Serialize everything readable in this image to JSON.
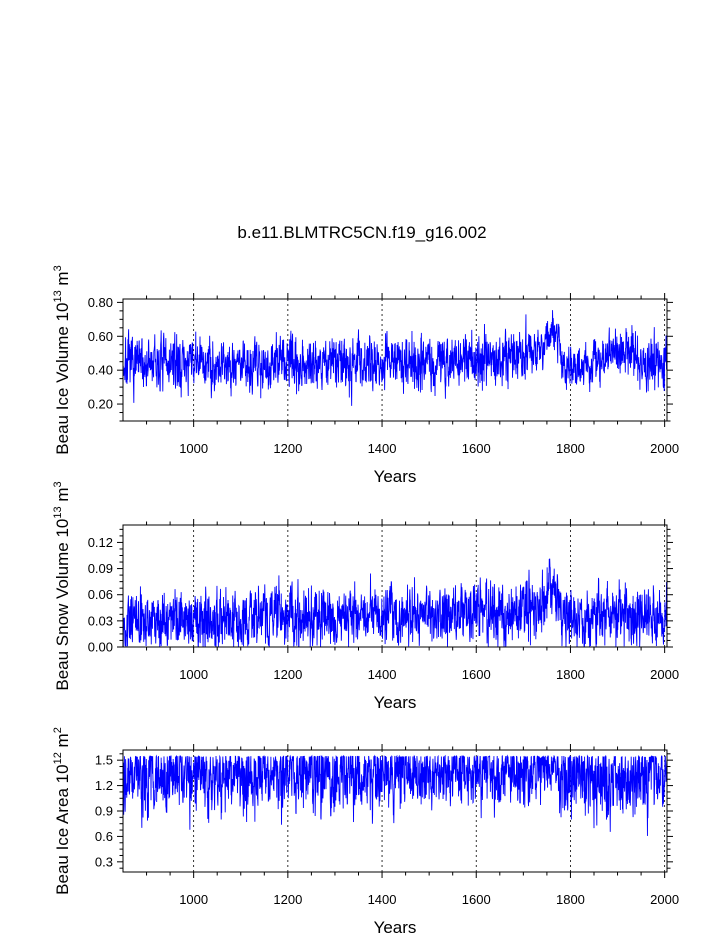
{
  "figure": {
    "title": "b.e11.BLMTRC5CN.f19_g16.002"
  },
  "colors": {
    "series": "#0000ff",
    "axes": "#000000",
    "background": "#ffffff"
  },
  "chart_data": [
    {
      "type": "line",
      "title": "",
      "xlabel": "Years",
      "ylabel": {
        "prefix": "Beau Ice Volume 10",
        "exp": "13",
        "unit": " m",
        "unit_exp": "3"
      },
      "xlim": [
        850,
        2005
      ],
      "ylim": [
        0.1,
        0.82
      ],
      "xticks": [
        1000,
        1200,
        1400,
        1600,
        1800,
        2000
      ],
      "xtick_labels": [
        "1000",
        "1200",
        "1400",
        "1600",
        "1800",
        "2000"
      ],
      "yticks": [
        0.2,
        0.4,
        0.6,
        0.8
      ],
      "ytick_labels": [
        "0.20",
        "0.40",
        "0.60",
        "0.80"
      ],
      "grid": "vertical dotted at major x ticks",
      "series": [
        {
          "name": "Beau Ice Volume",
          "color": "#0000ff"
        }
      ],
      "x_start": 850,
      "x_end": 2005,
      "keyframes": [
        [
          850,
          0.43,
          0.09
        ],
        [
          1000,
          0.44,
          0.09
        ],
        [
          1100,
          0.44,
          0.09
        ],
        [
          1300,
          0.45,
          0.09
        ],
        [
          1500,
          0.45,
          0.09
        ],
        [
          1600,
          0.47,
          0.09
        ],
        [
          1700,
          0.49,
          0.09
        ],
        [
          1740,
          0.52,
          0.09
        ],
        [
          1760,
          0.62,
          0.08
        ],
        [
          1775,
          0.6,
          0.07
        ],
        [
          1780,
          0.43,
          0.07
        ],
        [
          1850,
          0.44,
          0.08
        ],
        [
          1900,
          0.52,
          0.08
        ],
        [
          1930,
          0.52,
          0.09
        ],
        [
          1945,
          0.42,
          0.08
        ],
        [
          2005,
          0.43,
          0.09
        ]
      ],
      "clamp": [
        0.11,
        0.78
      ],
      "seed": 7
    },
    {
      "type": "line",
      "title": "",
      "xlabel": "Years",
      "ylabel": {
        "prefix": "Beau Snow Volume 10",
        "exp": "13",
        "unit": " m",
        "unit_exp": "3"
      },
      "xlim": [
        850,
        2005
      ],
      "ylim": [
        0.0,
        0.14
      ],
      "xticks": [
        1000,
        1200,
        1400,
        1600,
        1800,
        2000
      ],
      "xtick_labels": [
        "1000",
        "1200",
        "1400",
        "1600",
        "1800",
        "2000"
      ],
      "yticks": [
        0.0,
        0.03,
        0.06,
        0.09,
        0.12
      ],
      "ytick_labels": [
        "0.00",
        "0.03",
        "0.06",
        "0.09",
        "0.12"
      ],
      "grid": "vertical dotted at major x ticks",
      "series": [
        {
          "name": "Beau Snow Volume",
          "color": "#0000ff"
        }
      ],
      "x_start": 850,
      "x_end": 2005,
      "keyframes": [
        [
          850,
          0.03,
          0.018
        ],
        [
          1000,
          0.031,
          0.018
        ],
        [
          1200,
          0.036,
          0.02
        ],
        [
          1400,
          0.036,
          0.02
        ],
        [
          1600,
          0.038,
          0.021
        ],
        [
          1740,
          0.042,
          0.022
        ],
        [
          1760,
          0.07,
          0.025
        ],
        [
          1772,
          0.06,
          0.02
        ],
        [
          1780,
          0.032,
          0.018
        ],
        [
          1900,
          0.035,
          0.02
        ],
        [
          2005,
          0.03,
          0.018
        ]
      ],
      "clamp": [
        0.0,
        0.12
      ],
      "seed": 13
    },
    {
      "type": "line",
      "title": "",
      "xlabel": "Years",
      "ylabel": {
        "prefix": "Beau Ice Area 10",
        "exp": "12",
        "unit": " m",
        "unit_exp": "2"
      },
      "xlim": [
        850,
        2005
      ],
      "ylim": [
        0.18,
        1.62
      ],
      "xticks": [
        1000,
        1200,
        1400,
        1600,
        1800,
        2000
      ],
      "xtick_labels": [
        "1000",
        "1200",
        "1400",
        "1600",
        "1800",
        "2000"
      ],
      "yticks": [
        0.3,
        0.6,
        0.9,
        1.2,
        1.5
      ],
      "ytick_labels": [
        "0.3",
        "0.6",
        "0.9",
        "1.2",
        "1.5"
      ],
      "grid": "vertical dotted at major x ticks",
      "series": [
        {
          "name": "Beau Ice Area",
          "color": "#0000ff"
        }
      ],
      "x_start": 850,
      "x_end": 2005,
      "keyframes": [
        [
          850,
          1.3,
          0.25
        ],
        [
          1000,
          1.3,
          0.25
        ],
        [
          1400,
          1.32,
          0.25
        ],
        [
          1740,
          1.36,
          0.22
        ],
        [
          1760,
          1.45,
          0.15
        ],
        [
          1775,
          1.4,
          0.18
        ],
        [
          1780,
          1.28,
          0.27
        ],
        [
          2005,
          1.3,
          0.25
        ]
      ],
      "clamp": [
        0.36,
        1.55
      ],
      "seed": 29
    }
  ]
}
